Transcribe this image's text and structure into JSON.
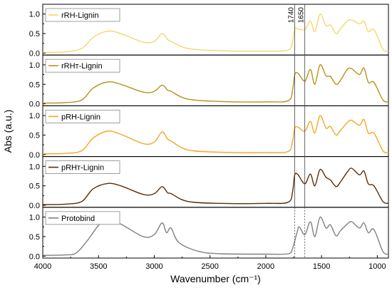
{
  "chart_data": {
    "type": "line",
    "xlabel": "Wavenumber (cm⁻¹)",
    "ylabel": "Abs (a.u.)",
    "xlim": [
      4000,
      900
    ],
    "x_ticks": [
      4000,
      3500,
      3000,
      2500,
      2000,
      1500,
      1000
    ],
    "y_ticks": [
      0.0,
      0.5,
      1.0
    ],
    "ylim": [
      -0.05,
      1.25
    ],
    "reference_lines": [
      {
        "label": "1740",
        "x": 1740
      },
      {
        "label": "1650",
        "x": 1650
      }
    ],
    "series": [
      {
        "name": "rRH-Lignin",
        "color": "#F5D76E",
        "points": [
          [
            4000,
            0.02
          ],
          [
            3800,
            0.03
          ],
          [
            3650,
            0.12
          ],
          [
            3550,
            0.4
          ],
          [
            3420,
            0.56
          ],
          [
            3300,
            0.5
          ],
          [
            3100,
            0.28
          ],
          [
            3000,
            0.3
          ],
          [
            2930,
            0.5
          ],
          [
            2880,
            0.35
          ],
          [
            2850,
            0.3
          ],
          [
            2700,
            0.12
          ],
          [
            2400,
            0.06
          ],
          [
            2000,
            0.05
          ],
          [
            1800,
            0.08
          ],
          [
            1760,
            0.3
          ],
          [
            1740,
            0.62
          ],
          [
            1710,
            0.62
          ],
          [
            1650,
            0.6
          ],
          [
            1600,
            0.82
          ],
          [
            1560,
            0.55
          ],
          [
            1513,
            1.0
          ],
          [
            1460,
            0.7
          ],
          [
            1420,
            0.72
          ],
          [
            1370,
            0.5
          ],
          [
            1330,
            0.62
          ],
          [
            1270,
            0.82
          ],
          [
            1230,
            0.85
          ],
          [
            1160,
            0.75
          ],
          [
            1120,
            0.82
          ],
          [
            1080,
            0.55
          ],
          [
            1030,
            0.6
          ],
          [
            950,
            0.1
          ],
          [
            900,
            0.05
          ]
        ]
      },
      {
        "name": "rRHᴛ-Lignin",
        "color": "#B8921A",
        "points": [
          [
            4000,
            0.02
          ],
          [
            3800,
            0.03
          ],
          [
            3650,
            0.1
          ],
          [
            3550,
            0.4
          ],
          [
            3420,
            0.56
          ],
          [
            3300,
            0.5
          ],
          [
            3100,
            0.3
          ],
          [
            3000,
            0.32
          ],
          [
            2930,
            0.48
          ],
          [
            2880,
            0.35
          ],
          [
            2850,
            0.32
          ],
          [
            2700,
            0.12
          ],
          [
            2400,
            0.06
          ],
          [
            2000,
            0.05
          ],
          [
            1800,
            0.08
          ],
          [
            1760,
            0.35
          ],
          [
            1740,
            0.75
          ],
          [
            1710,
            0.78
          ],
          [
            1650,
            0.58
          ],
          [
            1600,
            0.88
          ],
          [
            1560,
            0.5
          ],
          [
            1513,
            1.0
          ],
          [
            1460,
            0.72
          ],
          [
            1420,
            0.7
          ],
          [
            1370,
            0.5
          ],
          [
            1330,
            0.6
          ],
          [
            1270,
            0.88
          ],
          [
            1230,
            0.9
          ],
          [
            1160,
            0.75
          ],
          [
            1120,
            0.92
          ],
          [
            1080,
            0.55
          ],
          [
            1030,
            0.55
          ],
          [
            950,
            0.1
          ],
          [
            900,
            0.05
          ]
        ]
      },
      {
        "name": "pRH-Lignin",
        "color": "#F5A623",
        "points": [
          [
            4000,
            0.02
          ],
          [
            3800,
            0.03
          ],
          [
            3650,
            0.1
          ],
          [
            3550,
            0.42
          ],
          [
            3420,
            0.6
          ],
          [
            3300,
            0.52
          ],
          [
            3100,
            0.28
          ],
          [
            3000,
            0.32
          ],
          [
            2930,
            0.58
          ],
          [
            2880,
            0.4
          ],
          [
            2850,
            0.35
          ],
          [
            2700,
            0.12
          ],
          [
            2400,
            0.06
          ],
          [
            2000,
            0.05
          ],
          [
            1800,
            0.08
          ],
          [
            1760,
            0.35
          ],
          [
            1740,
            0.68
          ],
          [
            1710,
            0.7
          ],
          [
            1650,
            0.6
          ],
          [
            1600,
            0.85
          ],
          [
            1560,
            0.55
          ],
          [
            1513,
            1.0
          ],
          [
            1460,
            0.68
          ],
          [
            1420,
            0.72
          ],
          [
            1370,
            0.5
          ],
          [
            1330,
            0.62
          ],
          [
            1270,
            0.82
          ],
          [
            1230,
            0.88
          ],
          [
            1160,
            0.75
          ],
          [
            1120,
            0.9
          ],
          [
            1080,
            0.55
          ],
          [
            1030,
            0.55
          ],
          [
            950,
            0.1
          ],
          [
            900,
            0.05
          ]
        ]
      },
      {
        "name": "pRHᴛ-Lignin",
        "color": "#5C2E0A",
        "points": [
          [
            4000,
            0.02
          ],
          [
            3800,
            0.03
          ],
          [
            3650,
            0.1
          ],
          [
            3550,
            0.42
          ],
          [
            3420,
            0.56
          ],
          [
            3300,
            0.5
          ],
          [
            3100,
            0.28
          ],
          [
            3000,
            0.3
          ],
          [
            2930,
            0.48
          ],
          [
            2880,
            0.32
          ],
          [
            2850,
            0.3
          ],
          [
            2700,
            0.1
          ],
          [
            2400,
            0.05
          ],
          [
            2000,
            0.05
          ],
          [
            1800,
            0.08
          ],
          [
            1760,
            0.35
          ],
          [
            1740,
            0.78
          ],
          [
            1710,
            0.78
          ],
          [
            1650,
            0.55
          ],
          [
            1600,
            0.8
          ],
          [
            1560,
            0.5
          ],
          [
            1513,
            0.92
          ],
          [
            1460,
            0.72
          ],
          [
            1420,
            0.65
          ],
          [
            1370,
            0.48
          ],
          [
            1330,
            0.6
          ],
          [
            1270,
            0.85
          ],
          [
            1230,
            0.95
          ],
          [
            1160,
            0.78
          ],
          [
            1120,
            0.88
          ],
          [
            1080,
            0.55
          ],
          [
            1030,
            0.5
          ],
          [
            950,
            0.1
          ],
          [
            900,
            0.05
          ]
        ]
      },
      {
        "name": "Protobind",
        "color": "#808080",
        "points": [
          [
            4000,
            0.02
          ],
          [
            3800,
            0.03
          ],
          [
            3700,
            0.08
          ],
          [
            3600,
            0.4
          ],
          [
            3480,
            0.85
          ],
          [
            3400,
            0.9
          ],
          [
            3300,
            0.82
          ],
          [
            3100,
            0.5
          ],
          [
            3000,
            0.55
          ],
          [
            2930,
            0.85
          ],
          [
            2890,
            0.6
          ],
          [
            2850,
            0.72
          ],
          [
            2780,
            0.35
          ],
          [
            2600,
            0.12
          ],
          [
            2400,
            0.06
          ],
          [
            2000,
            0.05
          ],
          [
            1800,
            0.06
          ],
          [
            1760,
            0.2
          ],
          [
            1720,
            0.6
          ],
          [
            1700,
            0.75
          ],
          [
            1650,
            0.55
          ],
          [
            1600,
            0.88
          ],
          [
            1560,
            0.5
          ],
          [
            1513,
            1.0
          ],
          [
            1460,
            0.72
          ],
          [
            1420,
            0.8
          ],
          [
            1370,
            0.52
          ],
          [
            1330,
            0.65
          ],
          [
            1270,
            0.82
          ],
          [
            1230,
            0.88
          ],
          [
            1160,
            0.72
          ],
          [
            1120,
            0.85
          ],
          [
            1080,
            0.6
          ],
          [
            1030,
            0.68
          ],
          [
            950,
            0.12
          ],
          [
            900,
            0.05
          ]
        ]
      }
    ]
  }
}
